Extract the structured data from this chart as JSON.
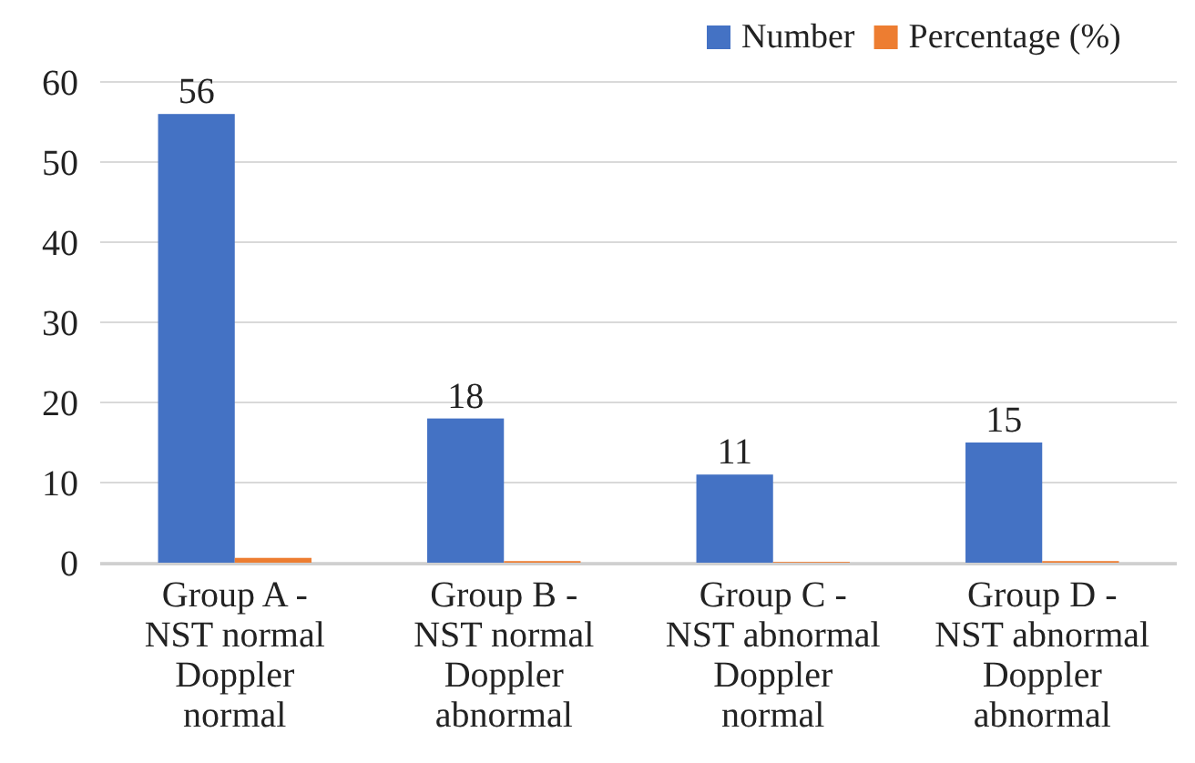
{
  "chart_data": {
    "type": "bar",
    "categories": [
      "Group A - NST normal Doppler normal",
      "Group B - NST normal Doppler abnormal",
      "Group C - NST abnormal Doppler normal",
      "Group D - NST abnormal Doppler abnormal"
    ],
    "series": [
      {
        "name": "Number",
        "color": "#4472c4",
        "values": [
          56,
          18,
          11,
          15
        ],
        "value_labels": [
          "56",
          "18",
          "11",
          "15"
        ]
      },
      {
        "name": "Percentage (%)",
        "color": "#ed7d31",
        "values": [
          0.6,
          0.2,
          0.1,
          0.2
        ]
      }
    ],
    "ylim": [
      0,
      60
    ],
    "yticks": [
      0,
      10,
      20,
      30,
      40,
      50,
      60
    ],
    "grid": "y",
    "legend": "top right"
  }
}
